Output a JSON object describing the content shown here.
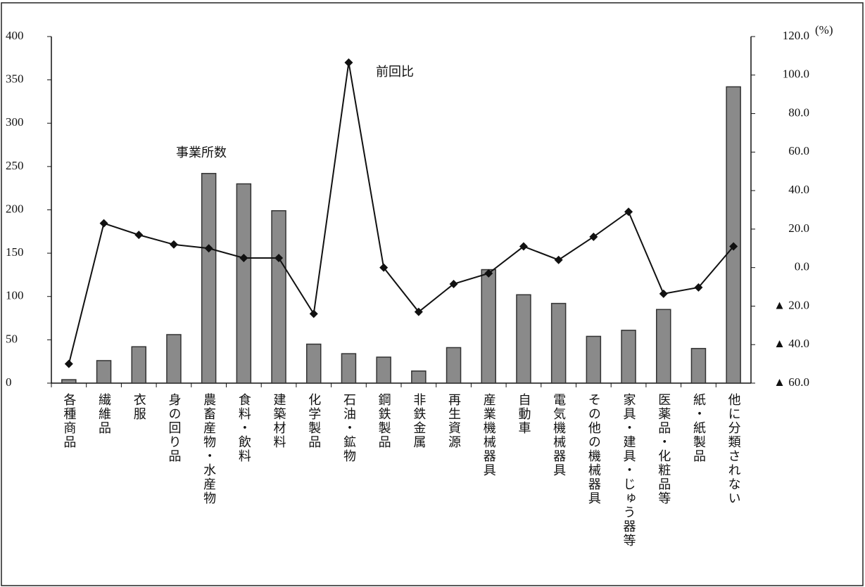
{
  "chart_data": {
    "type": "bar_line",
    "categories": [
      "各種商品",
      "繊維品",
      "衣服",
      "身の回り品",
      "農畜産物・水産物",
      "食料・飲料",
      "建築材料",
      "化学製品",
      "石油・鉱物",
      "鋼鉄製品",
      "非鉄金属",
      "再生資源",
      "産業機械器具",
      "自動車",
      "電気機械器具",
      "その他の機械器具",
      "家具・建具・じゅう器等",
      "医薬品・化粧品等",
      "紙・紙製品",
      "他に分類されない"
    ],
    "series": [
      {
        "name": "事業所数",
        "type": "bar",
        "color": "#8a8a8a",
        "values": [
          4,
          26,
          42,
          56,
          242,
          230,
          199,
          45,
          34,
          30,
          14,
          41,
          131,
          102,
          92,
          54,
          61,
          85,
          40,
          342
        ]
      },
      {
        "name": "前回比",
        "type": "line",
        "axis": "y2",
        "color": "#111111",
        "values": [
          -50,
          23,
          17,
          12,
          10,
          5,
          5,
          -24,
          106.5,
          0,
          -23,
          -8.5,
          -3,
          11,
          4,
          16,
          29,
          -13.6,
          -10.3,
          11
        ]
      }
    ],
    "ylim": [
      0,
      400
    ],
    "yticks": [
      0,
      50,
      100,
      150,
      200,
      250,
      300,
      350,
      400
    ],
    "y2lim": [
      -60,
      120
    ],
    "y2ticks": [
      {
        "value": -60,
        "label": "▲ 60.0"
      },
      {
        "value": -40,
        "label": "▲ 40.0"
      },
      {
        "value": -20,
        "label": "▲ 20.0"
      },
      {
        "value": 0,
        "label": "0.0"
      },
      {
        "value": 20,
        "label": "20.0"
      },
      {
        "value": 40,
        "label": "40.0"
      },
      {
        "value": 60,
        "label": "60.0"
      },
      {
        "value": 80,
        "label": "80.0"
      },
      {
        "value": 100,
        "label": "100.0"
      },
      {
        "value": 120,
        "label": "120.0"
      }
    ],
    "y2_label": "(%)",
    "grid": false
  }
}
